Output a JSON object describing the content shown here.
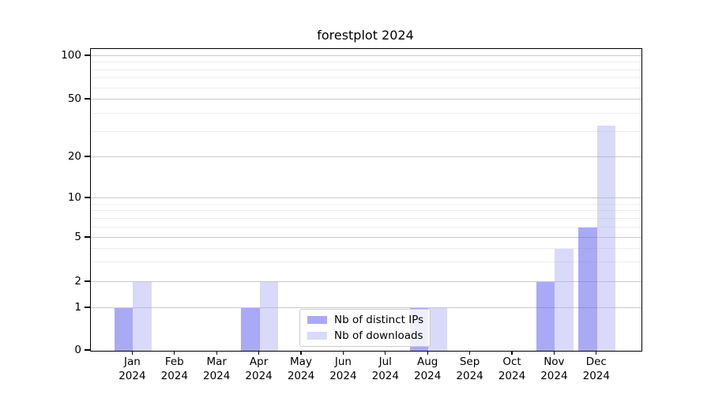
{
  "chart_data": {
    "type": "bar",
    "title": "forestplot 2024",
    "categories": [
      "Jan",
      "Feb",
      "Mar",
      "Apr",
      "May",
      "Jun",
      "Jul",
      "Aug",
      "Sep",
      "Oct",
      "Nov",
      "Dec"
    ],
    "x_tick_year": "2024",
    "series": [
      {
        "name": "Nb of distinct IPs",
        "color": "rgba(98,98,238,0.55)",
        "values": [
          1,
          0,
          0,
          1,
          0,
          0,
          0,
          1,
          0,
          0,
          2,
          6
        ]
      },
      {
        "name": "Nb of downloads",
        "color": "rgba(170,170,242,0.45)",
        "values": [
          2,
          0,
          0,
          2,
          0,
          0,
          0,
          1,
          0,
          0,
          4,
          33
        ]
      }
    ],
    "y_axis": {
      "scale": "asinh-log",
      "major_ticks": [
        0,
        1,
        2,
        5,
        10,
        20,
        50,
        100
      ],
      "minor_ticks": [
        3,
        4,
        6,
        7,
        8,
        9,
        30,
        40,
        60,
        70,
        80,
        90
      ]
    },
    "xlabel": "",
    "ylabel": "",
    "grid": true,
    "legend_position": "lower center"
  },
  "palette": {
    "background": "#ffffff",
    "spine": "#000000",
    "text": "#000000",
    "major_grid": "#c9c9c9",
    "minor_grid": "#ededed",
    "legend_border": "#cccccc",
    "legend_bg": "rgba(255,255,255,0.8)"
  }
}
